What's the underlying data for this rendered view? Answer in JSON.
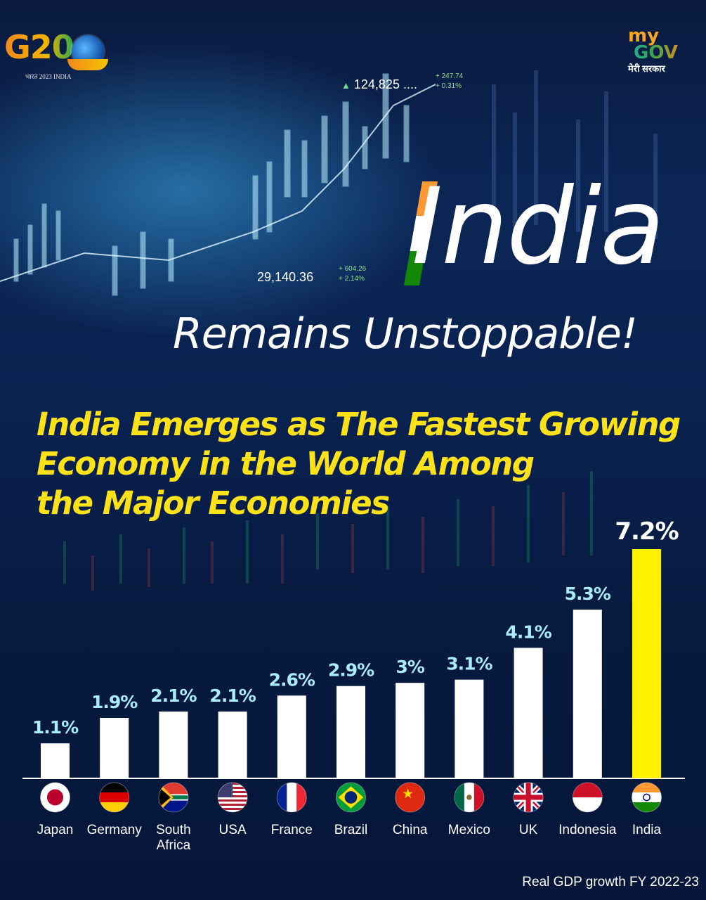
{
  "branding": {
    "g20_logo_text": "G20",
    "g20_tagline": "भारत 2023 INDIA",
    "mygov_my": "my",
    "mygov_gov": "GOV",
    "mygov_hindi": "मेरी सरकार"
  },
  "background_tickers": {
    "top_value": "124,825 ....",
    "top_change": "+ 247.74",
    "top_pct": "+ 0.31%",
    "mid_value": "29,140.36",
    "mid_change": "+ 604.26",
    "mid_pct": "+ 2.14%"
  },
  "hero": {
    "title": "India",
    "subtitle": "Remains Unstoppable!"
  },
  "headline": {
    "line1": "India Emerges as The Fastest Growing",
    "line2": "Economy in the World Among",
    "line3": "the Major Economies"
  },
  "colors": {
    "bar_default": "#ffffff",
    "bar_highlight": "#fff200",
    "label_default": "#a9ecff",
    "label_highlight": "#ffffff",
    "headline": "#fde21a",
    "saffron": "#ff9933",
    "green": "#138808"
  },
  "chart_data": {
    "type": "bar",
    "categories": [
      "Japan",
      "Germany",
      "South Africa",
      "USA",
      "France",
      "Brazil",
      "China",
      "Mexico",
      "UK",
      "Indonesia",
      "India"
    ],
    "category_lines": [
      [
        "Japan"
      ],
      [
        "Germany"
      ],
      [
        "South",
        "Africa"
      ],
      [
        "USA"
      ],
      [
        "France"
      ],
      [
        "Brazil"
      ],
      [
        "China"
      ],
      [
        "Mexico"
      ],
      [
        "UK"
      ],
      [
        "Indonesia"
      ],
      [
        "India"
      ]
    ],
    "values": [
      1.1,
      1.9,
      2.1,
      2.1,
      2.6,
      2.9,
      3.0,
      3.1,
      4.1,
      5.3,
      7.2
    ],
    "labels": [
      "1.1%",
      "1.9%",
      "2.1%",
      "2.1%",
      "2.6%",
      "2.9%",
      "3%",
      "3.1%",
      "4.1%",
      "5.3%",
      "7.2%"
    ],
    "flags": [
      "japan-flag",
      "germany-flag",
      "south-africa-flag",
      "usa-flag",
      "france-flag",
      "brazil-flag",
      "china-flag",
      "mexico-flag",
      "uk-flag",
      "indonesia-flag",
      "india-flag"
    ],
    "highlight": "India",
    "ylim": [
      0,
      7.2
    ],
    "grid": false,
    "legend": "none",
    "source_note": "Real GDP growth FY 2022-23"
  }
}
